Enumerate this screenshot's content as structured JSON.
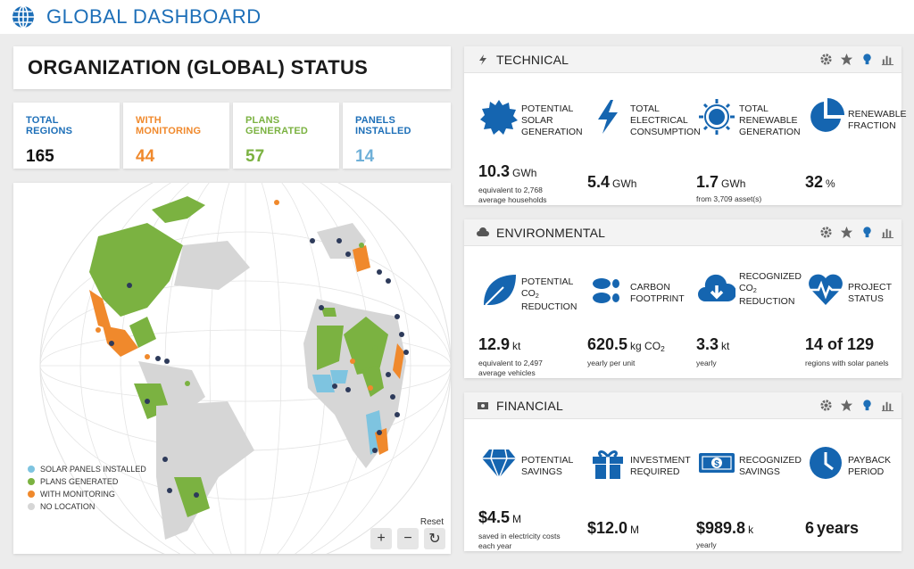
{
  "header": {
    "title": "GLOBAL DASHBOARD",
    "icon": "globe-icon"
  },
  "org": {
    "title": "ORGANIZATION (GLOBAL) STATUS"
  },
  "stats": [
    {
      "label": "TOTAL REGIONS",
      "value": "165",
      "color": "#1d6fb8"
    },
    {
      "label": "WITH MONITORING",
      "value": "44",
      "color": "#f0892c"
    },
    {
      "label": "PLANS GENERATED",
      "value": "57",
      "color": "#7bb241"
    },
    {
      "label": "PANELS INSTALLED",
      "value": "14",
      "color": "#6fb0d8"
    }
  ],
  "map": {
    "legend": [
      {
        "label": "SOLAR PANELS INSTALLED",
        "color": "#7ec4e0"
      },
      {
        "label": "PLANS GENERATED",
        "color": "#7bb241"
      },
      {
        "label": "WITH MONITORING",
        "color": "#f0892c"
      },
      {
        "label": "NO LOCATION",
        "color": "#d6d6d6"
      }
    ],
    "reset_label": "Reset",
    "zoom_in": "+",
    "zoom_out": "−",
    "reset_icon": "↻"
  },
  "technical": {
    "title": "TECHNICAL",
    "metrics": [
      {
        "icon": "sun-badge-icon",
        "label_lines": [
          "POTENTIAL",
          "SOLAR",
          "GENERATION"
        ],
        "value": "10.3",
        "unit": "GWh",
        "sub_lines": [
          "equivalent to 2,768",
          "average households"
        ]
      },
      {
        "icon": "lightning-icon",
        "label_lines": [
          "TOTAL",
          "ELECTRICAL",
          "CONSUMPTION"
        ],
        "value": "5.4",
        "unit": "GWh",
        "sub_lines": []
      },
      {
        "icon": "sun-icon",
        "label_lines": [
          "TOTAL",
          "RENEWABLE",
          "GENERATION"
        ],
        "value": "1.7",
        "unit": "GWh",
        "sub_lines": [
          "from 3,709 asset(s)"
        ]
      },
      {
        "icon": "pie-chart-icon",
        "label_lines": [
          "RENEWABLE",
          "FRACTION"
        ],
        "value": "32",
        "unit": "%",
        "sub_lines": []
      }
    ]
  },
  "environmental": {
    "title": "ENVIRONMENTAL",
    "metrics": [
      {
        "icon": "leaf-icon",
        "label_pre": [
          "POTENTIAL"
        ],
        "label_co2": "CO",
        "label_sub": "2",
        "label_post": [
          "REDUCTION"
        ],
        "value": "12.9",
        "unit": "kt",
        "sub_lines": [
          "equivalent to 2,497",
          "average vehicles"
        ]
      },
      {
        "icon": "footprint-icon",
        "label_lines": [
          "CARBON",
          "FOOTPRINT"
        ],
        "value": "620.5",
        "unit_main": "kg CO",
        "unit_sub": "2",
        "sub_lines": [
          "yearly per unit"
        ]
      },
      {
        "icon": "cloud-download-icon",
        "label_pre": [
          "RECOGNIZED"
        ],
        "label_co2": "CO",
        "label_sub": "2",
        "label_post": [
          "REDUCTION"
        ],
        "value": "3.3",
        "unit": "kt",
        "sub_lines": [
          "yearly"
        ]
      },
      {
        "icon": "heartbeat-icon",
        "label_lines": [
          "PROJECT",
          "STATUS"
        ],
        "value": "14 of 129",
        "unit": "",
        "sub_lines": [
          "regions with solar panels"
        ]
      }
    ]
  },
  "financial": {
    "title": "FINANCIAL",
    "metrics": [
      {
        "icon": "diamond-icon",
        "label_lines": [
          "POTENTIAL",
          "SAVINGS"
        ],
        "value": "$4.5",
        "unit": "M",
        "sub_lines": [
          "saved in electricity costs",
          "each year"
        ]
      },
      {
        "icon": "gift-icon",
        "label_lines": [
          "INVESTMENT",
          "REQUIRED"
        ],
        "value": "$12.0",
        "unit": "M",
        "sub_lines": []
      },
      {
        "icon": "money-icon",
        "label_lines": [
          "RECOGNIZED",
          "SAVINGS"
        ],
        "value": "$989.8",
        "unit": "k",
        "sub_lines": [
          "yearly"
        ]
      },
      {
        "icon": "clock-icon",
        "label_lines": [
          "PAYBACK",
          "PERIOD"
        ],
        "value": "6",
        "unit": "years",
        "sub_lines": []
      }
    ]
  },
  "colors": {
    "accent": "#1d6fb8",
    "icon_blue": "#1565b0"
  }
}
